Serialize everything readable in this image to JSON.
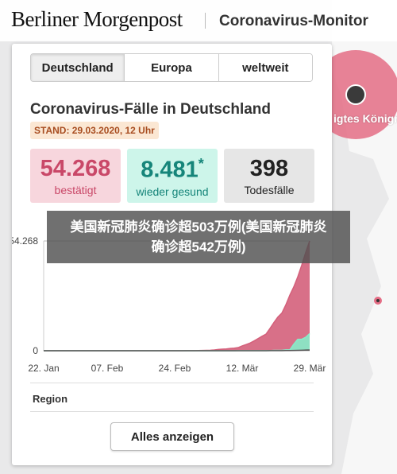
{
  "header": {
    "logo": "Berliner Morgenpost",
    "title": "Coronavirus-Monitor"
  },
  "map_label": "igtes Königr",
  "tabs": [
    "Deutschland",
    "Europa",
    "weltweit"
  ],
  "heading": "Coronavirus-Fälle in Deutschland",
  "stand": "STAND: 29.03.2020, 12 Uhr",
  "stats": [
    {
      "value": "54.268",
      "label": "bestätigt"
    },
    {
      "value": "8.481",
      "mark": "*",
      "label": "wieder gesund"
    },
    {
      "value": "398",
      "label": "Todesfälle"
    }
  ],
  "chart_data": {
    "type": "area",
    "categories": [
      "22. Jan",
      null,
      null,
      null,
      null,
      null,
      null,
      null,
      null,
      null,
      null,
      null,
      null,
      null,
      null,
      null,
      "07. Feb",
      null,
      null,
      null,
      null,
      null,
      null,
      null,
      null,
      null,
      null,
      null,
      null,
      null,
      null,
      null,
      null,
      "24. Feb",
      null,
      null,
      null,
      null,
      null,
      null,
      null,
      null,
      null,
      null,
      null,
      null,
      null,
      null,
      null,
      null,
      "12. Mär",
      null,
      null,
      null,
      null,
      null,
      null,
      null,
      null,
      null,
      null,
      null,
      null,
      null,
      null,
      null,
      null,
      "29. Mär"
    ],
    "series": [
      {
        "color": "#d4607b",
        "values": [
          0,
          0,
          0,
          0,
          0,
          0,
          4,
          4,
          5,
          7,
          8,
          10,
          12,
          12,
          12,
          12,
          13,
          13,
          14,
          14,
          16,
          16,
          16,
          16,
          16,
          16,
          16,
          16,
          16,
          16,
          16,
          16,
          16,
          16,
          18,
          21,
          26,
          53,
          66,
          117,
          150,
          188,
          240,
          400,
          639,
          795,
          902,
          1139,
          1296,
          1567,
          2369,
          3062,
          3795,
          4838,
          6012,
          7156,
          8198,
          10999,
          13957,
          16662,
          18610,
          22672,
          27436,
          31554,
          36508,
          42288,
          48582,
          54268
        ]
      },
      {
        "color": "#86ecc9",
        "values": [
          0,
          0,
          0,
          0,
          0,
          0,
          0,
          0,
          0,
          0,
          0,
          0,
          0,
          0,
          0,
          0,
          0,
          0,
          0,
          0,
          0,
          0,
          0,
          0,
          0,
          0,
          0,
          14,
          14,
          14,
          14,
          14,
          14,
          14,
          14,
          14,
          14,
          14,
          14,
          16,
          16,
          16,
          16,
          16,
          16,
          18,
          18,
          18,
          18,
          46,
          46,
          46,
          46,
          46,
          46,
          46,
          46,
          46,
          180,
          180,
          180,
          422,
          422,
          3243,
          5673,
          5673,
          6658,
          8481
        ]
      },
      {
        "color": "#555555",
        "values": [
          0,
          0,
          0,
          0,
          0,
          0,
          0,
          0,
          0,
          0,
          0,
          0,
          0,
          0,
          0,
          0,
          0,
          0,
          0,
          0,
          0,
          0,
          0,
          0,
          0,
          0,
          0,
          0,
          0,
          0,
          0,
          0,
          0,
          0,
          0,
          0,
          0,
          0,
          0,
          0,
          0,
          0,
          0,
          0,
          0,
          0,
          0,
          0,
          2,
          3,
          5,
          6,
          8,
          11,
          13,
          17,
          24,
          26,
          31,
          47,
          55,
          86,
          114,
          149,
          198,
          253,
          325,
          398
        ]
      }
    ],
    "ylim": [
      0,
      54268
    ],
    "yticks": [
      0,
      {
        "value": 54268,
        "label": "54.268"
      }
    ]
  },
  "caption": "美国新冠肺炎确诊超503万例(美国新冠肺炎确诊超542万例)",
  "region": "Region",
  "button": "Alles anzeigen"
}
